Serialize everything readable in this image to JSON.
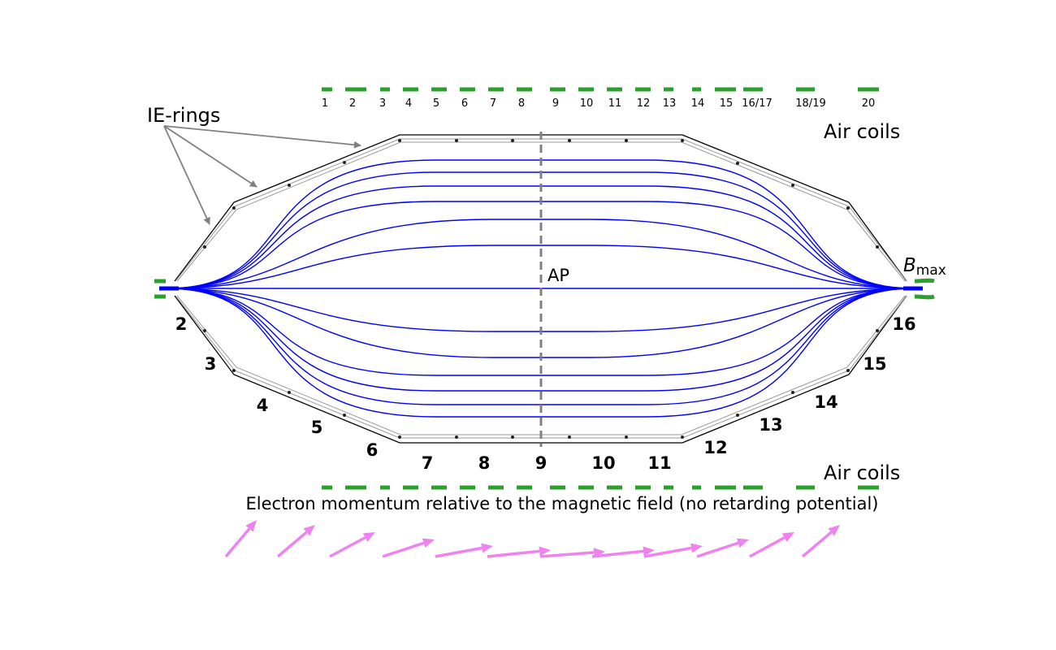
{
  "labels": {
    "ie_rings": "IE-rings",
    "air_coils_top": "Air coils",
    "air_coils_bottom": "Air coils",
    "ap": "AP",
    "bmax_main": "B",
    "bmax_sub": "max",
    "caption": "Electron momentum relative to the magnetic field (no retarding potential)"
  },
  "coil_labels": [
    "1",
    "2",
    "3",
    "4",
    "5",
    "6",
    "7",
    "8",
    "9",
    "10",
    "11",
    "12",
    "13",
    "14",
    "15",
    "16/17",
    "18/19",
    "20"
  ],
  "segment_labels_bottom": [
    "2",
    "3",
    "4",
    "5",
    "6",
    "7",
    "8",
    "9",
    "10",
    "11",
    "12",
    "13",
    "14",
    "15",
    "16"
  ],
  "colors": {
    "coil": "#2ca02c",
    "field_line": "#0000ff",
    "vessel": "#000000",
    "ring": "#888888",
    "analyzing_plane": "#808080",
    "ie_arrow": "#808080",
    "momentum_arrow": "#ee82ee"
  },
  "icons": {
    "ie_pointer": "arrow-icon",
    "momentum": "arrow-icon"
  }
}
